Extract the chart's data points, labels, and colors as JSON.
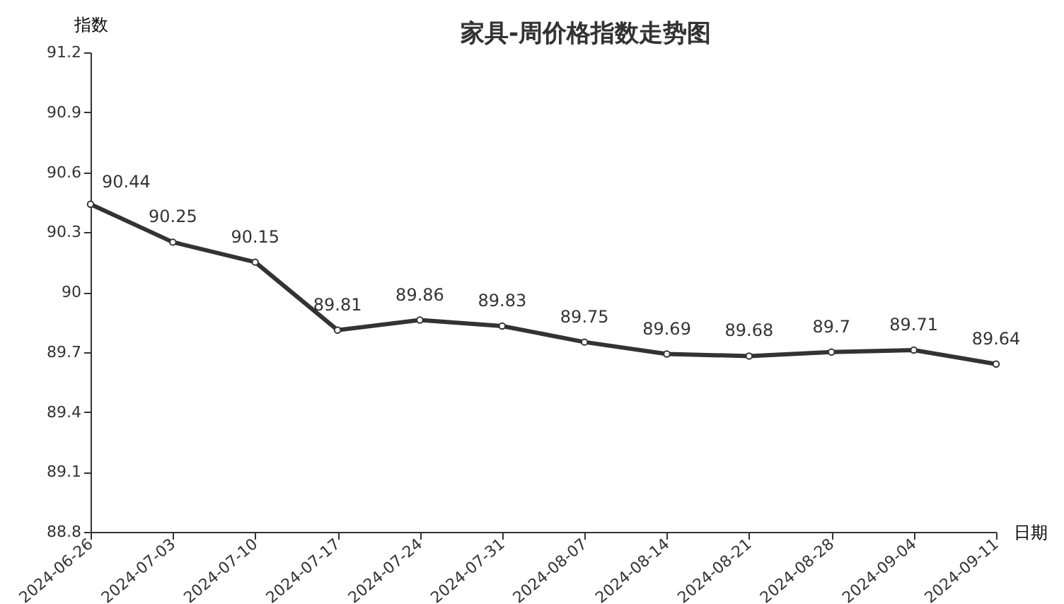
{
  "chart_data": {
    "type": "line",
    "title": "家具-周价格指数走势图",
    "ylabel": "指数",
    "xlabel": "日期",
    "categories": [
      "2024-06-26",
      "2024-07-03",
      "2024-07-10",
      "2024-07-17",
      "2024-07-24",
      "2024-07-31",
      "2024-08-07",
      "2024-08-14",
      "2024-08-21",
      "2024-08-28",
      "2024-09-04",
      "2024-09-11"
    ],
    "series": [
      {
        "color": "#333333",
        "values": [
          90.44,
          90.25,
          90.15,
          89.81,
          89.86,
          89.83,
          89.75,
          89.69,
          89.68,
          89.7,
          89.71,
          89.64
        ]
      }
    ],
    "ylim": [
      88.8,
      91.2
    ],
    "yticks": [
      88.8,
      89.1,
      89.4,
      89.7,
      90,
      90.3,
      90.6,
      90.9,
      91.2
    ],
    "grid": false,
    "marker": "circle",
    "line_style": "solid",
    "data_labels": true
  }
}
